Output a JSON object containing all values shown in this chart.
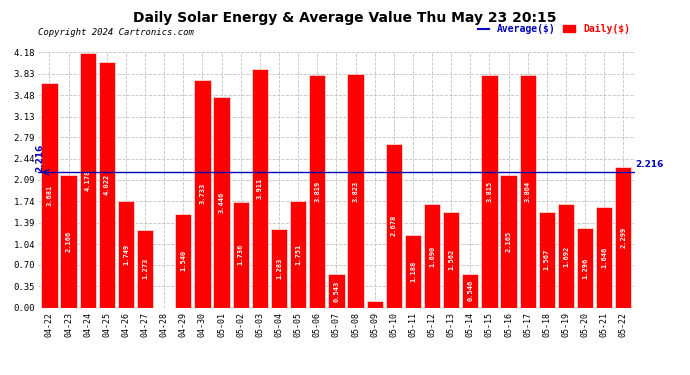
{
  "title": "Daily Solar Energy & Average Value Thu May 23 20:15",
  "copyright": "Copyright 2024 Cartronics.com",
  "average_label": "Average($)",
  "daily_label": "Daily($)",
  "average_value": 2.216,
  "categories": [
    "04-22",
    "04-23",
    "04-24",
    "04-25",
    "04-26",
    "04-27",
    "04-28",
    "04-29",
    "04-30",
    "05-01",
    "05-02",
    "05-03",
    "05-04",
    "05-05",
    "05-06",
    "05-07",
    "05-08",
    "05-09",
    "05-10",
    "05-11",
    "05-12",
    "05-13",
    "05-14",
    "05-15",
    "05-16",
    "05-17",
    "05-18",
    "05-19",
    "05-20",
    "05-21",
    "05-22"
  ],
  "values": [
    3.681,
    2.166,
    4.178,
    4.022,
    1.749,
    1.273,
    0.0,
    1.54,
    3.733,
    3.446,
    1.736,
    3.911,
    1.283,
    1.751,
    3.819,
    0.543,
    3.823,
    0.101,
    2.678,
    1.188,
    1.69,
    1.562,
    0.546,
    3.815,
    2.165,
    3.804,
    1.567,
    1.692,
    1.296,
    1.646,
    2.299
  ],
  "bar_color": "#ff0000",
  "bar_edge_color": "#ffffff",
  "average_line_color": "#0000bb",
  "average_text_color": "#0000bb",
  "background_color": "#ffffff",
  "grid_color": "#bbbbbb",
  "title_color": "#000000",
  "ylim": [
    0,
    4.18
  ],
  "yticks": [
    0.0,
    0.35,
    0.7,
    1.04,
    1.39,
    1.74,
    2.09,
    2.44,
    2.79,
    3.13,
    3.48,
    3.83,
    4.18
  ],
  "bar_value_fontsize": 5.0,
  "bar_value_color": "#ffffff",
  "average_fontsize": 6.5,
  "copyright_fontsize": 6.5,
  "copyright_color": "#000000",
  "legend_avg_color": "#0000bb",
  "legend_daily_color": "#ff0000",
  "title_fontsize": 10,
  "ytick_fontsize": 6.5,
  "xtick_fontsize": 6.0
}
